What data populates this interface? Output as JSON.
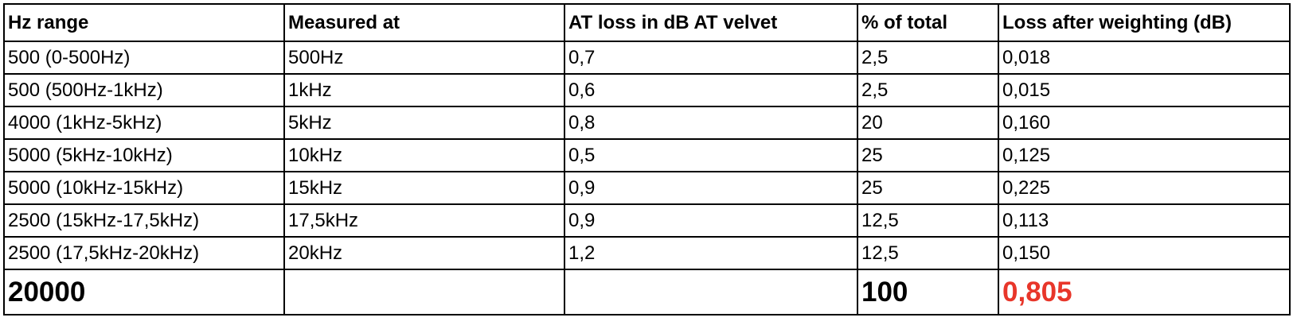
{
  "table": {
    "headers": [
      "Hz range",
      "Measured at",
      "AT loss in dB AT velvet",
      "% of total",
      "Loss after weighting (dB)"
    ],
    "rows": [
      [
        "500 (0-500Hz)",
        "500Hz",
        "0,7",
        "2,5",
        "0,018"
      ],
      [
        "500 (500Hz-1kHz)",
        "1kHz",
        "0,6",
        "2,5",
        "0,015"
      ],
      [
        "4000 (1kHz-5kHz)",
        "5kHz",
        "0,8",
        "20",
        "0,160"
      ],
      [
        "5000 (5kHz-10kHz)",
        "10kHz",
        "0,5",
        "25",
        "0,125"
      ],
      [
        "5000 (10kHz-15kHz)",
        "15kHz",
        "0,9",
        "25",
        "0,225"
      ],
      [
        "2500 (15kHz-17,5kHz)",
        "17,5kHz",
        "0,9",
        "12,5",
        "0,113"
      ],
      [
        "2500 (17,5kHz-20kHz)",
        "20kHz",
        "1,2",
        "12,5",
        "0,150"
      ]
    ],
    "total": [
      "20000",
      "",
      "",
      "100",
      "0,805"
    ]
  },
  "colors": {
    "total_loss": "#e8362a",
    "grid_line": "#000000",
    "text": "#000000"
  }
}
